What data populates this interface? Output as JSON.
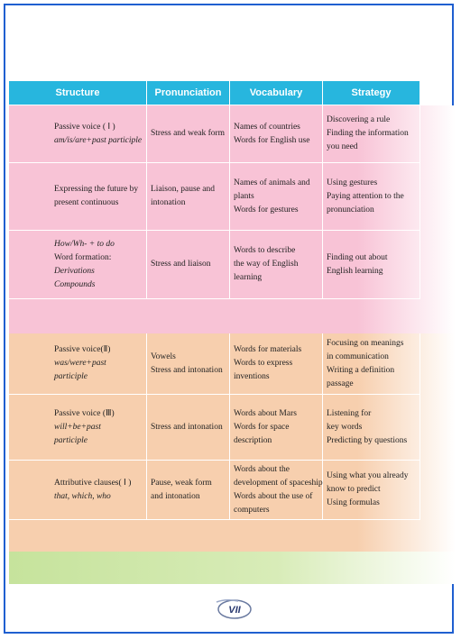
{
  "table": {
    "header": [
      "Structure",
      "Pronunciation",
      "Vocabulary",
      "Strategy"
    ],
    "sections": [
      {
        "rows": [
          {
            "cells": [
              [
                "Passive voice ( Ⅰ )",
                {
                  "text": "am/is/are+past participle",
                  "italic": true
                }
              ],
              [
                "Stress and weak form"
              ],
              [
                "Names of countries",
                "Words for English use"
              ],
              [
                "Discovering a rule",
                "Finding the information",
                "you need"
              ]
            ]
          },
          {
            "cells": [
              [
                "Expressing the future by",
                "present continuous"
              ],
              [
                "Liaison, pause and",
                "intonation"
              ],
              [
                "Names of animals and",
                "plants",
                "Words for gestures"
              ],
              [
                "Using gestures",
                "Paying attention to the",
                "pronunciation"
              ]
            ]
          },
          {
            "cells": [
              [
                {
                  "text": "How/Wh- + to do",
                  "italic": true
                },
                "Word formation:",
                {
                  "text": "Derivations",
                  "italic": true
                },
                {
                  "text": "Compounds",
                  "italic": true
                }
              ],
              [
                "Stress and liaison"
              ],
              [
                "Words to describe",
                "the way of English",
                "learning"
              ],
              [
                "Finding out about",
                "English learning"
              ]
            ]
          }
        ]
      },
      {
        "rows": [
          {
            "cells": [
              [
                "Passive voice(Ⅱ)",
                {
                  "text": "was/were+past",
                  "italic": true
                },
                {
                  "text": "participle",
                  "italic": true
                }
              ],
              [
                "Vowels",
                "Stress and intonation"
              ],
              [
                "Words for materials",
                "Words to express",
                "inventions"
              ],
              [
                "Focusing on meanings",
                "in communication",
                "Writing  a definition",
                "passage"
              ]
            ]
          },
          {
            "cells": [
              [
                "Passive voice (Ⅲ)",
                {
                  "text": "will+be+past",
                  "italic": true
                },
                {
                  "text": "participle",
                  "italic": true
                }
              ],
              [
                "Stress and intonation"
              ],
              [
                "Words about Mars",
                "Words for space",
                "description"
              ],
              [
                "Listening for",
                "key words",
                "Predicting by questions"
              ]
            ]
          },
          {
            "cells": [
              [
                "Attributive clauses( Ⅰ )",
                {
                  "text": "that, which, who",
                  "italic": true
                }
              ],
              [
                "Pause, weak form",
                "and intonation"
              ],
              [
                "Words about the",
                "development of spaceship",
                "Words about the use of",
                "computers"
              ],
              [
                "Using what you already",
                "know to predict",
                "Using formulas"
              ]
            ]
          }
        ]
      }
    ]
  },
  "logo": "VII"
}
